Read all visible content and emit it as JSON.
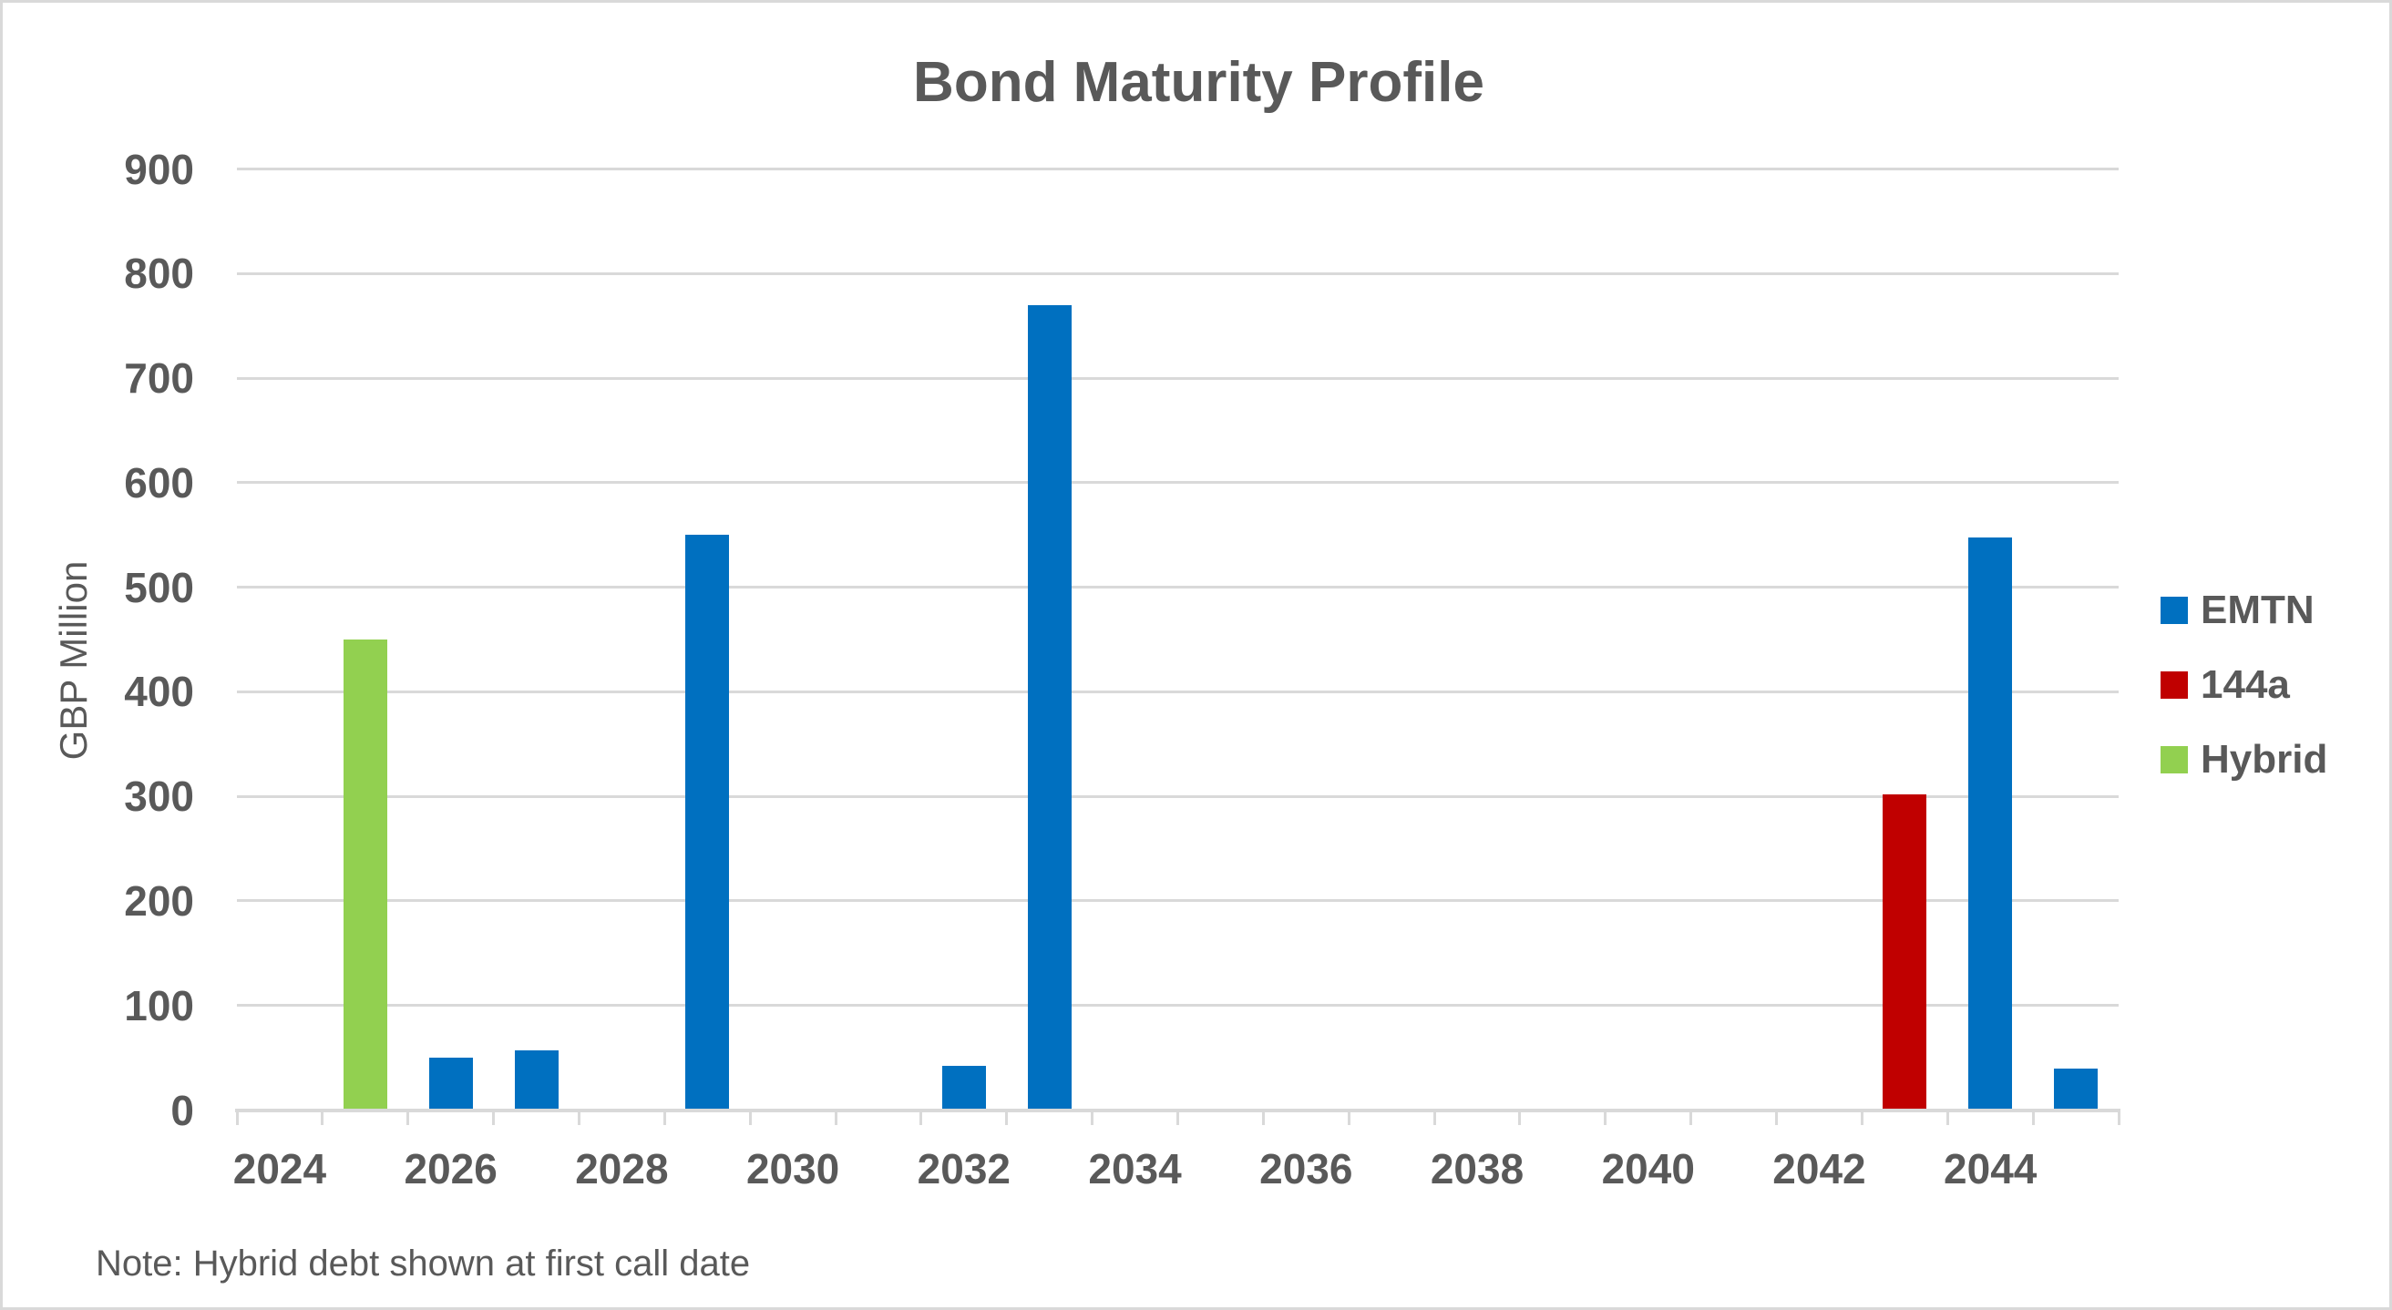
{
  "chart_data": {
    "type": "bar",
    "title": "Bond Maturity Profile",
    "ylabel": "GBP Million",
    "xlabel": "",
    "ylim": [
      0,
      900
    ],
    "ytick_interval": 100,
    "grid": "horizontal",
    "legend_position": "right",
    "note": "Note: Hybrid debt shown at first call date",
    "categories": [
      2024,
      2025,
      2026,
      2027,
      2028,
      2029,
      2030,
      2031,
      2032,
      2033,
      2034,
      2035,
      2036,
      2037,
      2038,
      2039,
      2040,
      2041,
      2042,
      2043,
      2044,
      2045
    ],
    "xtick_labels": [
      "2024",
      "2026",
      "2028",
      "2030",
      "2032",
      "2034",
      "2036",
      "2038",
      "2040",
      "2042",
      "2044"
    ],
    "xtick_label_interval": 2,
    "series": [
      {
        "name": "EMTN",
        "color": "#0070C0",
        "values": [
          null,
          null,
          50,
          57,
          null,
          550,
          null,
          null,
          42,
          770,
          null,
          null,
          null,
          null,
          null,
          null,
          null,
          null,
          null,
          null,
          548,
          40
        ]
      },
      {
        "name": "144a",
        "color": "#C00000",
        "values": [
          null,
          null,
          null,
          null,
          null,
          null,
          null,
          null,
          null,
          null,
          null,
          null,
          null,
          null,
          null,
          null,
          null,
          null,
          null,
          302,
          null,
          null
        ]
      },
      {
        "name": "Hybrid",
        "color": "#92D050",
        "values": [
          null,
          450,
          null,
          null,
          null,
          null,
          null,
          null,
          null,
          null,
          null,
          null,
          null,
          null,
          null,
          null,
          null,
          null,
          null,
          null,
          null,
          null
        ]
      }
    ],
    "colors": {
      "gridline": "#D9D9D9",
      "axis_line": "#D9D9D9",
      "text": "#595959",
      "background": "#FFFFFF",
      "border": "#D9D9D9"
    }
  }
}
